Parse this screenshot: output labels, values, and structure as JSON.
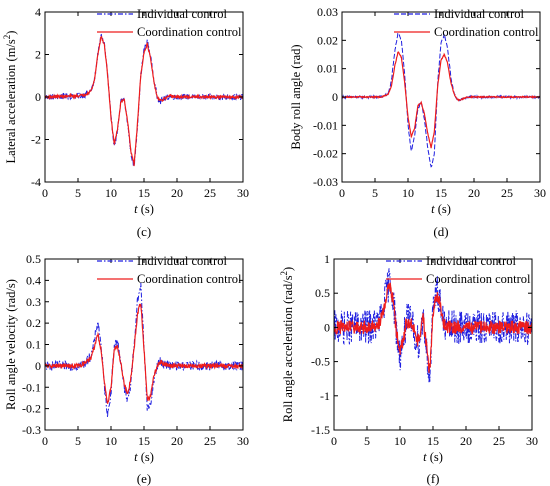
{
  "colors": {
    "individual": "#1f1fe0",
    "coordination": "#ee1c1c",
    "axis": "#000000"
  },
  "panels": [
    {
      "caption": "(c)",
      "chart_data": {
        "type": "line",
        "xlabel_italic": "t",
        "xlabel_unit": "(s)",
        "ylabel": "Lateral acceleration (m/s",
        "ylabel_sup": "2",
        "ylabel_tail": ")",
        "xlim": [
          0,
          30
        ],
        "ylim": [
          -4,
          4
        ],
        "xticks": [
          0,
          5,
          10,
          15,
          20,
          25,
          30
        ],
        "yticks": [
          -4,
          -2,
          0,
          2,
          4
        ],
        "legend": [
          "Individual control",
          "Coordination control"
        ],
        "legend_position": "top-right",
        "series": [
          {
            "name": "Individual control",
            "style": "dash-dot",
            "x": [
              0,
              5,
              6,
              7,
              7.5,
              8,
              8.5,
              9,
              9.5,
              10,
              10.5,
              11,
              11.5,
              12,
              12.5,
              13,
              13.5,
              14,
              14.5,
              15,
              15.5,
              16,
              16.5,
              17,
              17.5,
              18,
              19,
              20,
              22,
              25,
              28,
              30
            ],
            "y": [
              0,
              0.05,
              0.1,
              0.3,
              0.8,
              2,
              2.9,
              2.5,
              1,
              -1,
              -2.3,
              -1.6,
              -0.2,
              -0.1,
              -1.2,
              -2.6,
              -3.3,
              -1.4,
              1,
              2.2,
              2.6,
              1.9,
              0.8,
              0,
              -0.2,
              -0.1,
              0.05,
              0,
              0,
              0,
              0,
              0
            ],
            "noise": 0.14
          },
          {
            "name": "Coordination control",
            "style": "solid",
            "x": [
              0,
              5,
              6,
              7,
              7.5,
              8,
              8.5,
              9,
              9.5,
              10,
              10.5,
              11,
              11.5,
              12,
              12.5,
              13,
              13.5,
              14,
              14.5,
              15,
              15.5,
              16,
              16.5,
              17,
              17.5,
              18,
              19,
              20,
              22,
              25,
              28,
              30
            ],
            "y": [
              0,
              0.05,
              0.1,
              0.3,
              0.8,
              2,
              2.85,
              2.45,
              1,
              -1,
              -2.2,
              -1.5,
              -0.2,
              -0.1,
              -1.1,
              -2.5,
              -3.2,
              -1.3,
              1,
              2.1,
              2.5,
              1.8,
              0.7,
              0,
              -0.2,
              -0.1,
              0.05,
              0,
              0,
              0,
              0,
              0
            ],
            "noise": 0.06
          }
        ]
      }
    },
    {
      "caption": "(d)",
      "chart_data": {
        "type": "line",
        "xlabel_italic": "t",
        "xlabel_unit": "(s)",
        "ylabel": "Body roll angle (rad)",
        "ylabel_sup": "",
        "ylabel_tail": "",
        "xlim": [
          0,
          30
        ],
        "ylim": [
          -0.03,
          0.03
        ],
        "xticks": [
          0,
          5,
          10,
          15,
          20,
          25,
          30
        ],
        "yticks": [
          -0.03,
          -0.02,
          -0.01,
          0,
          0.01,
          0.02,
          0.03
        ],
        "legend": [
          "Individual control",
          "Coordination control"
        ],
        "legend_position": "top-right",
        "series": [
          {
            "name": "Individual control",
            "style": "dashed",
            "x": [
              0,
              5,
              6,
              7,
              7.5,
              8,
              8.5,
              9,
              9.5,
              10,
              10.5,
              11,
              11.5,
              12,
              12.5,
              13,
              13.5,
              14,
              14.5,
              15,
              15.5,
              16,
              16.5,
              17,
              17.5,
              18,
              19,
              20,
              22,
              25,
              28,
              30
            ],
            "y": [
              0,
              0,
              0,
              0.001,
              0.006,
              0.016,
              0.023,
              0.02,
              0.008,
              -0.01,
              -0.019,
              -0.014,
              -0.004,
              -0.002,
              -0.008,
              -0.018,
              -0.025,
              -0.02,
              0.005,
              0.019,
              0.022,
              0.017,
              0.007,
              0.001,
              -0.001,
              -0.001,
              0,
              0,
              0,
              0,
              0,
              0
            ],
            "noise": 0.0004
          },
          {
            "name": "Coordination control",
            "style": "solid",
            "x": [
              0,
              5,
              6,
              7,
              7.5,
              8,
              8.5,
              9,
              9.5,
              10,
              10.5,
              11,
              11.5,
              12,
              12.5,
              13,
              13.5,
              14,
              14.5,
              15,
              15.5,
              16,
              16.5,
              17,
              17.5,
              18,
              19,
              20,
              22,
              25,
              28,
              30
            ],
            "y": [
              0,
              0,
              0,
              0.001,
              0.004,
              0.011,
              0.016,
              0.014,
              0.005,
              -0.007,
              -0.014,
              -0.011,
              -0.003,
              -0.002,
              -0.006,
              -0.013,
              -0.018,
              -0.012,
              0.004,
              0.013,
              0.015,
              0.012,
              0.005,
              0.001,
              -0.001,
              -0.001,
              0,
              0,
              0,
              0,
              0,
              0
            ],
            "noise": 0.0002
          }
        ]
      }
    },
    {
      "caption": "(e)",
      "chart_data": {
        "type": "line",
        "xlabel_italic": "t",
        "xlabel_unit": "(s)",
        "ylabel": "Roll angle velocity (rad/s)",
        "ylabel_sup": "",
        "ylabel_tail": "",
        "xlim": [
          0,
          30
        ],
        "ylim": [
          -0.3,
          0.5
        ],
        "xticks": [
          0,
          5,
          10,
          15,
          20,
          25,
          30
        ],
        "yticks": [
          -0.3,
          -0.2,
          -0.1,
          0,
          0.1,
          0.2,
          0.3,
          0.4,
          0.5
        ],
        "legend": [
          "Individual control",
          "Coordination control"
        ],
        "legend_position": "top-right",
        "series": [
          {
            "name": "Individual control",
            "style": "dash-dot",
            "x": [
              0,
              5,
              6,
              7,
              7.5,
              8,
              8.5,
              9,
              9.5,
              10,
              10.5,
              11,
              11.5,
              12,
              12.5,
              13,
              13.5,
              14,
              14.5,
              15,
              15.5,
              16,
              16.5,
              17,
              17.5,
              18,
              19,
              20,
              22,
              25,
              28,
              30
            ],
            "y": [
              0,
              0,
              0.01,
              0.05,
              0.12,
              0.21,
              0.1,
              -0.1,
              -0.23,
              -0.12,
              0.1,
              0.11,
              0.02,
              -0.1,
              -0.17,
              -0.08,
              0.1,
              0.3,
              0.38,
              0.1,
              -0.2,
              -0.18,
              -0.06,
              0,
              0.02,
              0.01,
              0,
              0,
              0,
              0,
              0,
              0
            ],
            "noise": 0.022
          },
          {
            "name": "Coordination control",
            "style": "solid",
            "x": [
              0,
              5,
              6,
              7,
              7.5,
              8,
              8.5,
              9,
              9.5,
              10,
              10.5,
              11,
              11.5,
              12,
              12.5,
              13,
              13.5,
              14,
              14.5,
              15,
              15.5,
              16,
              16.5,
              17,
              17.5,
              18,
              19,
              20,
              22,
              25,
              28,
              30
            ],
            "y": [
              0,
              0,
              0.01,
              0.04,
              0.09,
              0.15,
              0.07,
              -0.08,
              -0.18,
              -0.1,
              0.08,
              0.09,
              0.01,
              -0.08,
              -0.14,
              -0.06,
              0.08,
              0.24,
              0.3,
              0.08,
              -0.16,
              -0.14,
              -0.05,
              0,
              0.02,
              0.01,
              0,
              0,
              0,
              0,
              0,
              0
            ],
            "noise": 0.01
          }
        ]
      }
    },
    {
      "caption": "(f)",
      "chart_data": {
        "type": "line",
        "xlabel_italic": "t",
        "xlabel_unit": "(s)",
        "ylabel": "Roll angle acceleration (rad/s",
        "ylabel_sup": "2",
        "ylabel_tail": ")",
        "xlim": [
          0,
          30
        ],
        "ylim": [
          -1.5,
          1
        ],
        "xticks": [
          0,
          5,
          10,
          15,
          20,
          25,
          30
        ],
        "yticks": [
          -1.5,
          -1,
          -0.5,
          0,
          0.5,
          1
        ],
        "legend": [
          "Individual control",
          "Coordination control"
        ],
        "legend_position": "top-right",
        "series": [
          {
            "name": "Individual control",
            "style": "dash-dot",
            "x": [
              0,
              5,
              6,
              7,
              7.5,
              8,
              8.5,
              9,
              9.5,
              10,
              10.5,
              11,
              11.5,
              12,
              12.5,
              13,
              13.5,
              14,
              14.5,
              15,
              15.5,
              16,
              16.5,
              17,
              17.5,
              18,
              19,
              20,
              22,
              25,
              28,
              30
            ],
            "y": [
              0,
              0,
              0.02,
              0.1,
              0.3,
              0.55,
              0.7,
              0.4,
              -0.1,
              -0.4,
              -0.2,
              0.1,
              0.1,
              0,
              -0.2,
              -0.2,
              0.2,
              -0.3,
              -0.8,
              0.2,
              0.6,
              0.4,
              0.1,
              0,
              0,
              0,
              0,
              0,
              0,
              0,
              0,
              0
            ],
            "noise": 0.25
          },
          {
            "name": "Coordination control",
            "style": "solid",
            "x": [
              0,
              5,
              6,
              7,
              7.5,
              8,
              8.5,
              9,
              9.5,
              10,
              10.5,
              11,
              11.5,
              12,
              12.5,
              13,
              13.5,
              14,
              14.5,
              15,
              15.5,
              16,
              16.5,
              17,
              17.5,
              18,
              19,
              20,
              22,
              25,
              28,
              30
            ],
            "y": [
              0,
              0,
              0.02,
              0.08,
              0.25,
              0.5,
              0.62,
              0.35,
              -0.1,
              -0.35,
              -0.18,
              0.08,
              0.08,
              0,
              -0.18,
              -0.2,
              0.15,
              -0.25,
              -0.65,
              0.15,
              0.5,
              0.35,
              0.08,
              0,
              0,
              0,
              0,
              0,
              0,
              0,
              0,
              0
            ],
            "noise": 0.1
          }
        ]
      }
    }
  ]
}
